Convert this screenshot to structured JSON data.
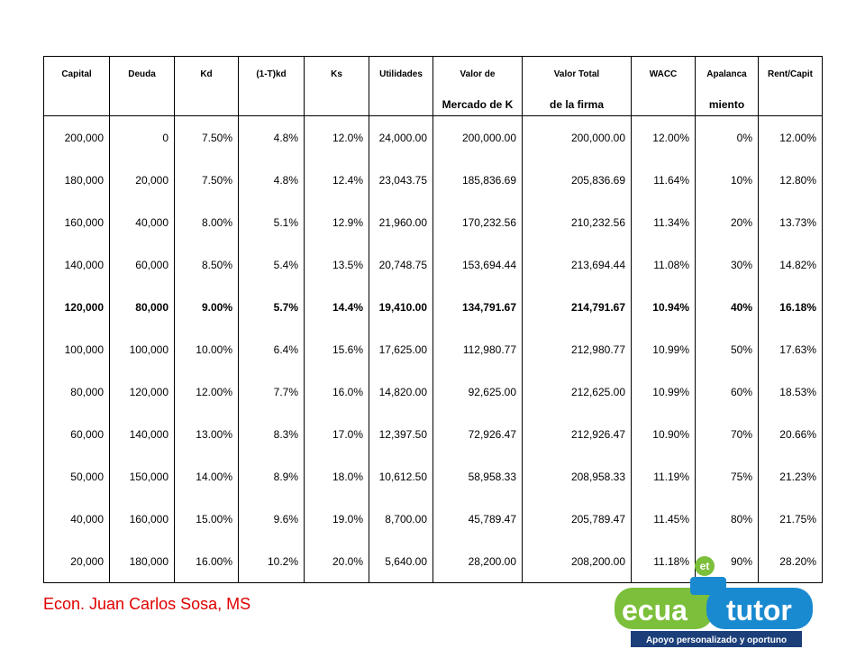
{
  "table": {
    "header": [
      {
        "line1": "Capital"
      },
      {
        "line1": "Deuda"
      },
      {
        "line1": "Kd"
      },
      {
        "line1": "(1-T)kd"
      },
      {
        "line1": "Ks"
      },
      {
        "line1": "Utilidades"
      },
      {
        "line1": "Valor de",
        "line2": "Mercado de K"
      },
      {
        "line1": "Valor Total",
        "line2": "de la firma"
      },
      {
        "line1": "WACC"
      },
      {
        "line1": "Apalanca",
        "line2": "miento"
      },
      {
        "line1": "Rent/Capit"
      }
    ],
    "rows": [
      [
        "200,000",
        "0",
        "7.50%",
        "4.8%",
        "12.0%",
        "24,000.00",
        "200,000.00",
        "200,000.00",
        "12.00%",
        "0%",
        "12.00%"
      ],
      [
        "180,000",
        "20,000",
        "7.50%",
        "4.8%",
        "12.4%",
        "23,043.75",
        "185,836.69",
        "205,836.69",
        "11.64%",
        "10%",
        "12.80%"
      ],
      [
        "160,000",
        "40,000",
        "8.00%",
        "5.1%",
        "12.9%",
        "21,960.00",
        "170,232.56",
        "210,232.56",
        "11.34%",
        "20%",
        "13.73%"
      ],
      [
        "140,000",
        "60,000",
        "8.50%",
        "5.4%",
        "13.5%",
        "20,748.75",
        "153,694.44",
        "213,694.44",
        "11.08%",
        "30%",
        "14.82%"
      ],
      [
        "120,000",
        "80,000",
        "9.00%",
        "5.7%",
        "14.4%",
        "19,410.00",
        "134,791.67",
        "214,791.67",
        "10.94%",
        "40%",
        "16.18%"
      ],
      [
        "100,000",
        "100,000",
        "10.00%",
        "6.4%",
        "15.6%",
        "17,625.00",
        "112,980.77",
        "212,980.77",
        "10.99%",
        "50%",
        "17.63%"
      ],
      [
        "80,000",
        "120,000",
        "12.00%",
        "7.7%",
        "16.0%",
        "14,820.00",
        "92,625.00",
        "212,625.00",
        "10.99%",
        "60%",
        "18.53%"
      ],
      [
        "60,000",
        "140,000",
        "13.00%",
        "8.3%",
        "17.0%",
        "12,397.50",
        "72,926.47",
        "212,926.47",
        "10.90%",
        "70%",
        "20.66%"
      ],
      [
        "50,000",
        "150,000",
        "14.00%",
        "8.9%",
        "18.0%",
        "10,612.50",
        "58,958.33",
        "208,958.33",
        "11.19%",
        "75%",
        "21.23%"
      ],
      [
        "40,000",
        "160,000",
        "15.00%",
        "9.6%",
        "19.0%",
        "8,700.00",
        "45,789.47",
        "205,789.47",
        "11.45%",
        "80%",
        "21.75%"
      ],
      [
        "20,000",
        "180,000",
        "16.00%",
        "10.2%",
        "20.0%",
        "5,640.00",
        "28,200.00",
        "208,200.00",
        "11.18%",
        "90%",
        "28.20%"
      ]
    ],
    "bold_row": 4
  },
  "footer": {
    "author": "Econ. Juan Carlos Sosa, MS"
  },
  "logo": {
    "badge": "et",
    "word1": "ecua",
    "word2": "tutor",
    "tagline": "Apoyo personalizado y oportuno"
  }
}
